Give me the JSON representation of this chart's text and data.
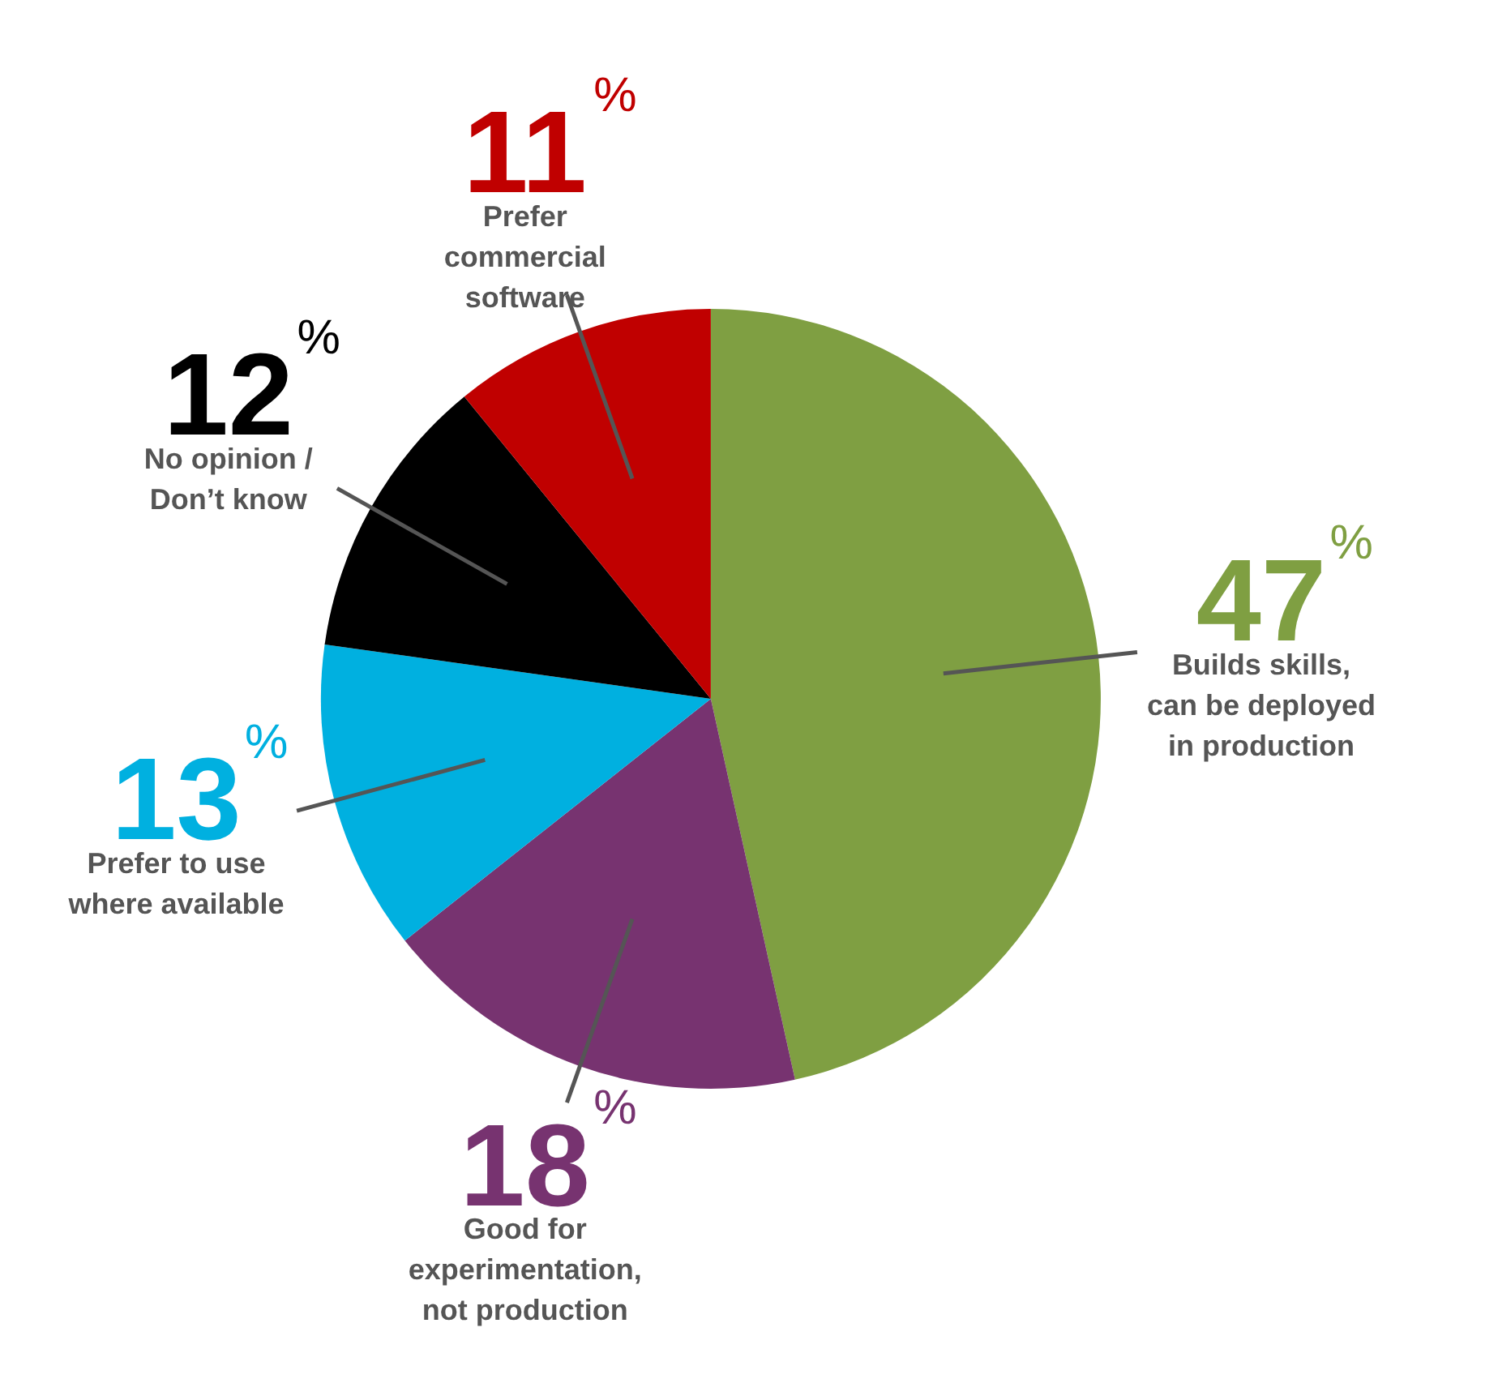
{
  "chart_data": {
    "type": "pie",
    "categories": [
      "Builds skills, can be deployed in production",
      "Good for experimentation, not production",
      "Prefer to use where available",
      "No opinion / Don’t know",
      "Prefer commercial software"
    ],
    "values": [
      47,
      18,
      13,
      12,
      11
    ],
    "value_labels": [
      "47%",
      "18%",
      "13%",
      "12%",
      "11%"
    ],
    "colors": [
      "#7f9f42",
      "#773370",
      "#00b0e0",
      "#000000",
      "#c00000"
    ]
  }
}
